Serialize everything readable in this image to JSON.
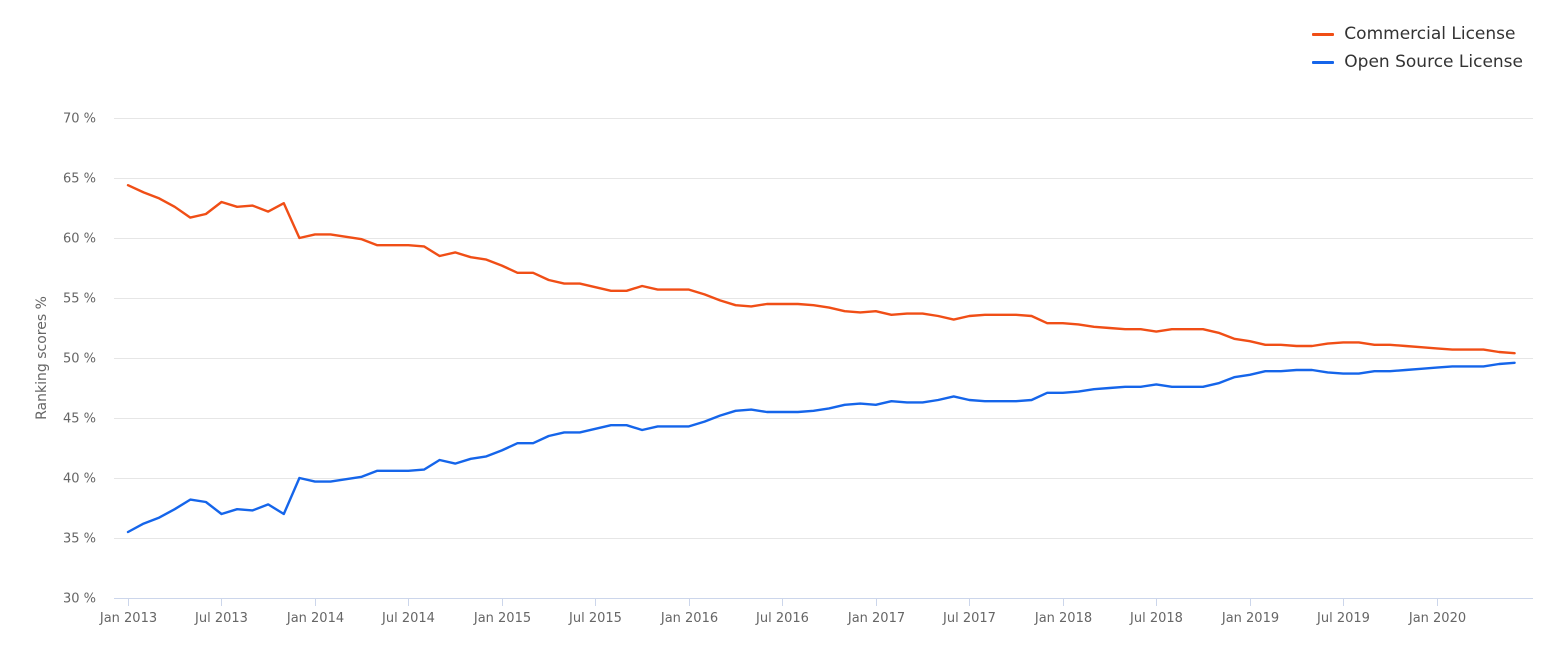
{
  "chart_data": {
    "type": "line",
    "title": "",
    "xlabel": "",
    "ylabel": "Ranking scores %",
    "ylim": [
      30,
      70
    ],
    "y_ticks": [
      30,
      35,
      40,
      45,
      50,
      55,
      60,
      65,
      70
    ],
    "y_tick_labels": [
      "30 %",
      "35 %",
      "40 %",
      "45 %",
      "50 %",
      "55 %",
      "60 %",
      "65 %",
      "70 %"
    ],
    "x_tick_labels": [
      "Jan 2013",
      "Jul 2013",
      "Jan 2014",
      "Jul 2014",
      "Jan 2015",
      "Jul 2015",
      "Jan 2016",
      "Jul 2016",
      "Jan 2017",
      "Jul 2017",
      "Jan 2018",
      "Jul 2018",
      "Jan 2019",
      "Jul 2019",
      "Jan 2020"
    ],
    "x_start": "Jan 2013",
    "grid": true,
    "legend_position": "top-right",
    "series": [
      {
        "name": "Commercial License",
        "color": "#f04e16",
        "values": [
          64.4,
          63.8,
          63.3,
          62.6,
          61.7,
          62.0,
          63.0,
          62.6,
          62.7,
          62.2,
          62.9,
          60.0,
          60.3,
          60.3,
          60.1,
          59.9,
          59.4,
          59.4,
          59.4,
          59.3,
          58.5,
          58.8,
          58.4,
          58.2,
          57.7,
          57.1,
          57.1,
          56.5,
          56.2,
          56.2,
          55.9,
          55.6,
          55.6,
          56.0,
          55.7,
          55.7,
          55.7,
          55.3,
          54.8,
          54.4,
          54.3,
          54.5,
          54.5,
          54.5,
          54.4,
          54.2,
          53.9,
          53.8,
          53.9,
          53.6,
          53.7,
          53.7,
          53.5,
          53.2,
          53.5,
          53.6,
          53.6,
          53.6,
          53.5,
          52.9,
          52.9,
          52.8,
          52.6,
          52.5,
          52.4,
          52.4,
          52.2,
          52.4,
          52.4,
          52.4,
          52.1,
          51.6,
          51.4,
          51.1,
          51.1,
          51.0,
          51.0,
          51.2,
          51.3,
          51.3,
          51.1,
          51.1,
          51.0,
          50.9,
          50.8,
          50.7,
          50.7,
          50.7,
          50.5,
          50.4
        ]
      },
      {
        "name": "Open Source License",
        "color": "#1565ea",
        "values": [
          35.5,
          36.2,
          36.7,
          37.4,
          38.2,
          38.0,
          37.0,
          37.4,
          37.3,
          37.8,
          37.0,
          40.0,
          39.7,
          39.7,
          39.9,
          40.1,
          40.6,
          40.6,
          40.6,
          40.7,
          41.5,
          41.2,
          41.6,
          41.8,
          42.3,
          42.9,
          42.9,
          43.5,
          43.8,
          43.8,
          44.1,
          44.4,
          44.4,
          44.0,
          44.3,
          44.3,
          44.3,
          44.7,
          45.2,
          45.6,
          45.7,
          45.5,
          45.5,
          45.5,
          45.6,
          45.8,
          46.1,
          46.2,
          46.1,
          46.4,
          46.3,
          46.3,
          46.5,
          46.8,
          46.5,
          46.4,
          46.4,
          46.4,
          46.5,
          47.1,
          47.1,
          47.2,
          47.4,
          47.5,
          47.6,
          47.6,
          47.8,
          47.6,
          47.6,
          47.6,
          47.9,
          48.4,
          48.6,
          48.9,
          48.9,
          49.0,
          49.0,
          48.8,
          48.7,
          48.7,
          48.9,
          48.9,
          49.0,
          49.1,
          49.2,
          49.3,
          49.3,
          49.3,
          49.5,
          49.6
        ]
      }
    ]
  }
}
